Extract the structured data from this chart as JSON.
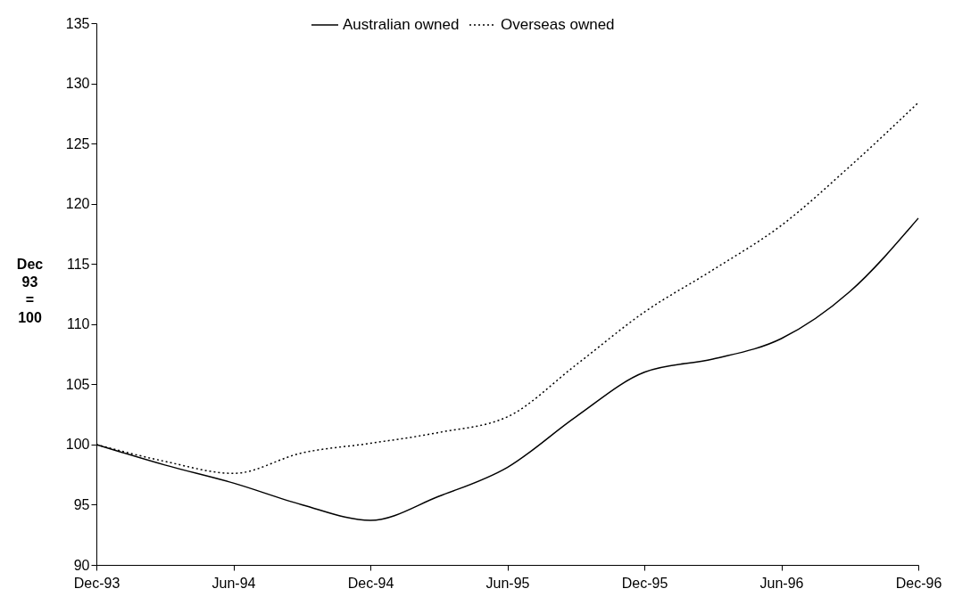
{
  "chart_data": {
    "type": "line",
    "ylabel": "Dec 93 = 100",
    "categories": [
      "Dec-93",
      null,
      "Jun-94",
      null,
      "Dec-94",
      null,
      "Jun-95",
      null,
      "Dec-95",
      null,
      "Jun-96",
      null,
      "Dec-96"
    ],
    "series": [
      {
        "name": "Australian owned",
        "color": "#000000",
        "line_style": "solid",
        "values": [
          100,
          98.3,
          96.8,
          95.0,
          93.7,
          95.7,
          98.1,
          102.3,
          106.0,
          107.1,
          108.8,
          112.7,
          118.8
        ]
      },
      {
        "name": "Overseas owned",
        "color": "#000000",
        "line_style": "dotted",
        "values": [
          100,
          98.6,
          97.6,
          99.3,
          100.1,
          101.0,
          102.3,
          106.6,
          111.0,
          114.5,
          118.2,
          123.1,
          128.4
        ]
      }
    ],
    "ylim": [
      90,
      135
    ],
    "yticks": [
      90,
      95,
      100,
      105,
      110,
      115,
      120,
      125,
      130,
      135
    ],
    "grid": false,
    "legend": "top",
    "marker": "none"
  }
}
